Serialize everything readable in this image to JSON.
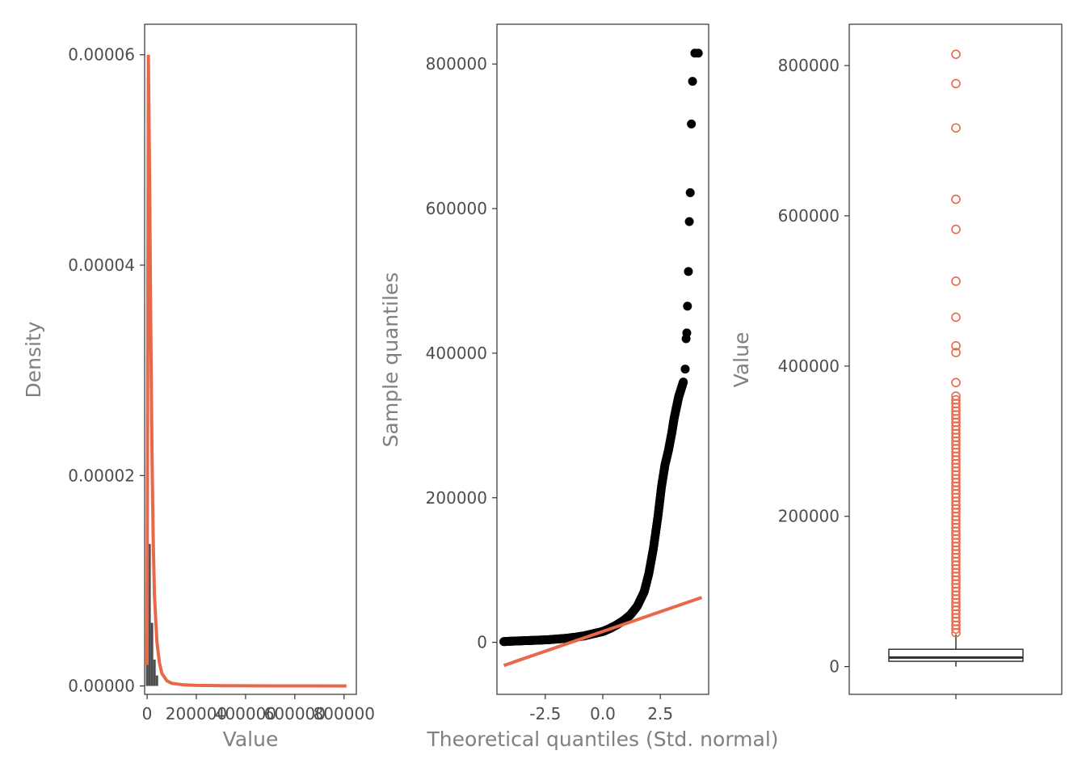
{
  "colors": {
    "accent": "#E8684A",
    "bars": "#4D4D4D",
    "points": "#000000",
    "frame": "#333333",
    "axis_title": "#808080"
  },
  "chart_data": [
    {
      "type": "area",
      "xlabel": "Value",
      "ylabel": "Density",
      "xlim": [
        -10000,
        850000
      ],
      "ylim": [
        -8e-07,
        6.29e-05
      ],
      "x_ticks": [
        0,
        200000,
        400000,
        600000,
        800000
      ],
      "x_tick_labels": [
        "0",
        "200000",
        "400000",
        "600000",
        "800000"
      ],
      "y_ticks": [
        0,
        2e-05,
        4e-05,
        6e-05
      ],
      "y_tick_labels": [
        "0.00000",
        "0.00002",
        "0.00004",
        "0.00006"
      ],
      "histogram": {
        "bin_centers": [
          0,
          10000,
          20000,
          30000,
          40000
        ],
        "density": [
          1.95e-05,
          1.35e-05,
          6e-06,
          2.5e-06,
          1e-06
        ]
      },
      "density_curve": {
        "x": [
          0,
          5000,
          10000,
          15000,
          20000,
          25000,
          30000,
          40000,
          50000,
          60000,
          80000,
          100000,
          150000,
          200000,
          300000,
          500000,
          810000
        ],
        "y": [
          2e-06,
          6e-05,
          4.85e-05,
          3.4e-05,
          2.2e-05,
          1.35e-05,
          8.5e-06,
          4.2e-06,
          2.2e-06,
          1.2e-06,
          5e-07,
          2.5e-07,
          1e-07,
          5e-08,
          2e-08,
          1e-08,
          0.0
        ]
      }
    },
    {
      "type": "scatter",
      "xlabel": "Theoretical quantiles (Std. normal)",
      "ylabel": "Sample quantiles",
      "xlim": [
        -4.6,
        4.6
      ],
      "ylim": [
        -72000,
        855000
      ],
      "x_ticks": [
        -2.5,
        0,
        2.5
      ],
      "x_tick_labels": [
        "-2.5",
        "0.0",
        "2.5"
      ],
      "y_ticks": [
        0,
        200000,
        400000,
        600000,
        800000
      ],
      "y_tick_labels": [
        "0",
        "200000",
        "400000",
        "600000",
        "800000"
      ],
      "points": {
        "x": [
          -4.3,
          -4.0,
          -3.6,
          -3.2,
          -2.8,
          -2.4,
          -2.0,
          -1.6,
          -1.2,
          -0.8,
          -0.4,
          0.0,
          0.3,
          0.6,
          0.9,
          1.2,
          1.5,
          1.8,
          2.0,
          2.2,
          2.4,
          2.55,
          2.7,
          2.85,
          3.0,
          3.1,
          3.2,
          3.3,
          3.4,
          3.5,
          3.58,
          3.62,
          3.65,
          3.68,
          3.72,
          3.76,
          3.8,
          3.85,
          3.9,
          4.0,
          4.15
        ],
        "y": [
          1000,
          1500,
          2000,
          2500,
          3000,
          3500,
          4500,
          5500,
          7000,
          9000,
          12000,
          15000,
          19000,
          24000,
          30000,
          38000,
          50000,
          70000,
          95000,
          130000,
          175000,
          215000,
          245000,
          265000,
          290000,
          310000,
          325000,
          340000,
          350000,
          360000,
          378000,
          420000,
          428000,
          465000,
          513000,
          582000,
          622000,
          717000,
          776000,
          815000,
          815000
        ]
      },
      "reference_line": {
        "x": [
          -4.3,
          4.3
        ],
        "y": [
          -32000,
          62000
        ]
      }
    },
    {
      "type": "box",
      "ylabel": "Value",
      "ylim": [
        -37000,
        855000
      ],
      "y_ticks": [
        0,
        200000,
        400000,
        600000,
        800000
      ],
      "y_tick_labels": [
        "0",
        "200000",
        "400000",
        "600000",
        "800000"
      ],
      "box": {
        "q1": 7000,
        "median": 12000,
        "q3": 23000,
        "whisker_low": 0,
        "whisker_high": 43000
      },
      "outliers": [
        45000,
        50000,
        55000,
        60000,
        65000,
        70000,
        75000,
        80000,
        85000,
        90000,
        95000,
        100000,
        105000,
        110000,
        115000,
        120000,
        125000,
        130000,
        135000,
        140000,
        145000,
        150000,
        155000,
        160000,
        165000,
        170000,
        175000,
        180000,
        185000,
        190000,
        195000,
        200000,
        205000,
        210000,
        215000,
        220000,
        225000,
        230000,
        235000,
        240000,
        245000,
        250000,
        255000,
        260000,
        265000,
        270000,
        275000,
        280000,
        285000,
        290000,
        295000,
        300000,
        305000,
        310000,
        315000,
        320000,
        325000,
        330000,
        335000,
        340000,
        345000,
        350000,
        355000,
        360000,
        378000,
        418000,
        427000,
        465000,
        513000,
        582000,
        622000,
        717000,
        776000,
        815000
      ]
    }
  ]
}
